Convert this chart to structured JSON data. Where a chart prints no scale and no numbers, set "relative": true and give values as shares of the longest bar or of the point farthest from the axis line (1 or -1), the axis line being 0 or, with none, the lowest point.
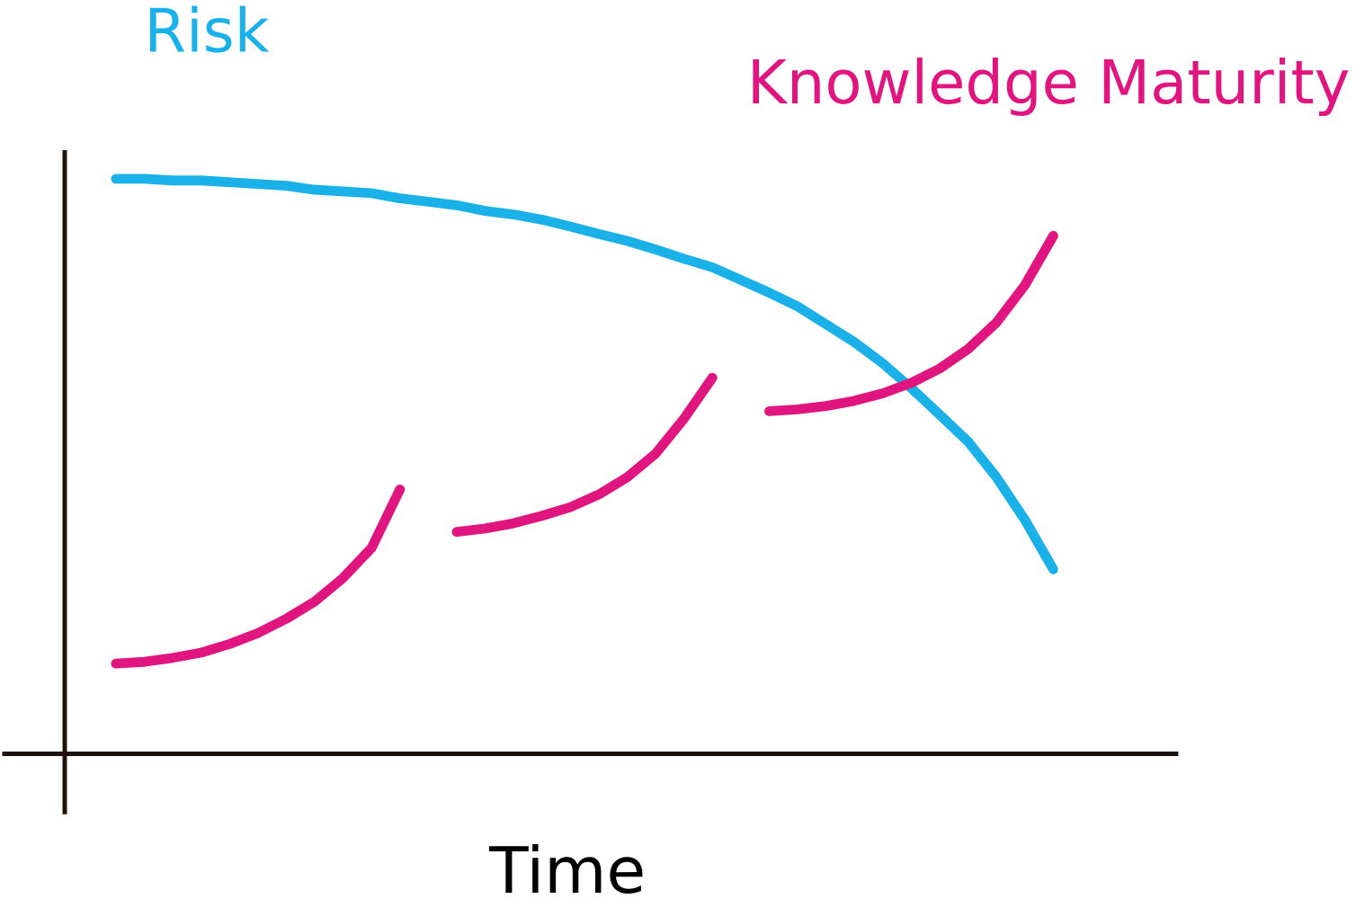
{
  "chart_data": {
    "type": "line",
    "relative": true,
    "xlabel": "Time",
    "legend": false,
    "marker": "none",
    "line_style": "solid",
    "categories": [
      null,
      null,
      null,
      null,
      null,
      null,
      null,
      null,
      null,
      null,
      null,
      null,
      null,
      null,
      null,
      null,
      null,
      null,
      null,
      null,
      null,
      null,
      null,
      null,
      null,
      null,
      null,
      null,
      null,
      null,
      null,
      null,
      null,
      null
    ],
    "series": [
      {
        "name": "Risk",
        "color": "#1ab0e8",
        "values": [
          1,
          1,
          0.997,
          0.997,
          0.994,
          0.991,
          0.988,
          0.981,
          0.978,
          0.975,
          0.966,
          0.96,
          0.954,
          0.944,
          0.938,
          0.929,
          0.917,
          0.904,
          0.892,
          0.877,
          0.861,
          0.846,
          0.824,
          0.802,
          0.778,
          0.747,
          0.716,
          0.679,
          0.636,
          0.59,
          0.543,
          0.481,
          0.407,
          0.321
        ]
      },
      {
        "name": "Knowledge Maturity",
        "color": "#e0157f",
        "values": [
          0.157,
          0.16,
          0.167,
          0.176,
          0.191,
          0.21,
          0.235,
          0.265,
          0.306,
          0.358,
          0.46,
          null,
          0.386,
          0.392,
          0.401,
          0.414,
          0.429,
          0.451,
          0.481,
          0.522,
          0.583,
          0.654,
          null,
          0.596,
          0.599,
          0.605,
          0.614,
          0.627,
          0.645,
          0.67,
          0.704,
          0.75,
          0.815,
          0.901
        ]
      }
    ]
  }
}
